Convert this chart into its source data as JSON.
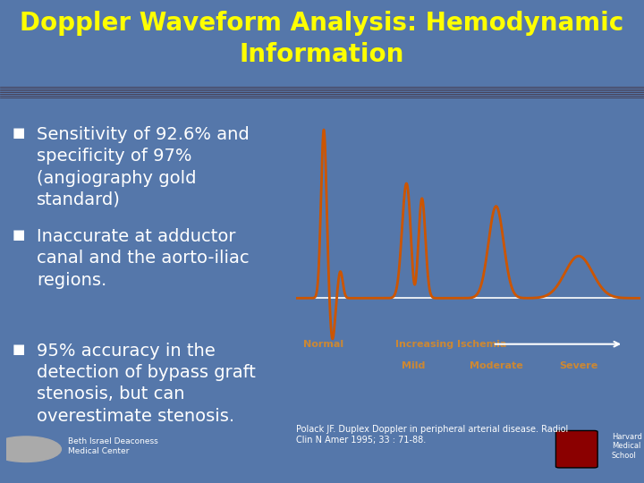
{
  "title_line1": "Doppler Waveform Analysis: Hemodynamic",
  "title_line2": "Information",
  "title_color": "#FFFF00",
  "title_bg": "#4a6080",
  "separator_color": "#5a1a0a",
  "main_bg": "#5577aa",
  "bullet_color": "#ffffff",
  "bullet_size": 14,
  "bullets": [
    "Sensitivity of 92.6% and\nspecificity of 97%\n(angiography gold\nstandard)",
    "Inaccurate at adductor\ncanal and the aorto-iliac\nregions.",
    "95% accuracy in the\ndetection of bypass graft\nstenosis, but can\noverestimate stenosis."
  ],
  "waveform_bg": "#000000",
  "waveform_color": "#cc5500",
  "waveform_line_color": "#ffffff",
  "label_normal": "Normal",
  "label_ischemia": "Increasing Ischemia",
  "label_mild": "Mild",
  "label_moderate": "Moderate",
  "label_severe": "Severe",
  "label_color": "#cc8833",
  "ref_citation": "Polack JF. Duplex Doppler in peripheral arterial disease. Radiol\nClin N Amer 1995; 33 : 71-88.",
  "citation_color": "#ffffff",
  "citation_size": 7
}
